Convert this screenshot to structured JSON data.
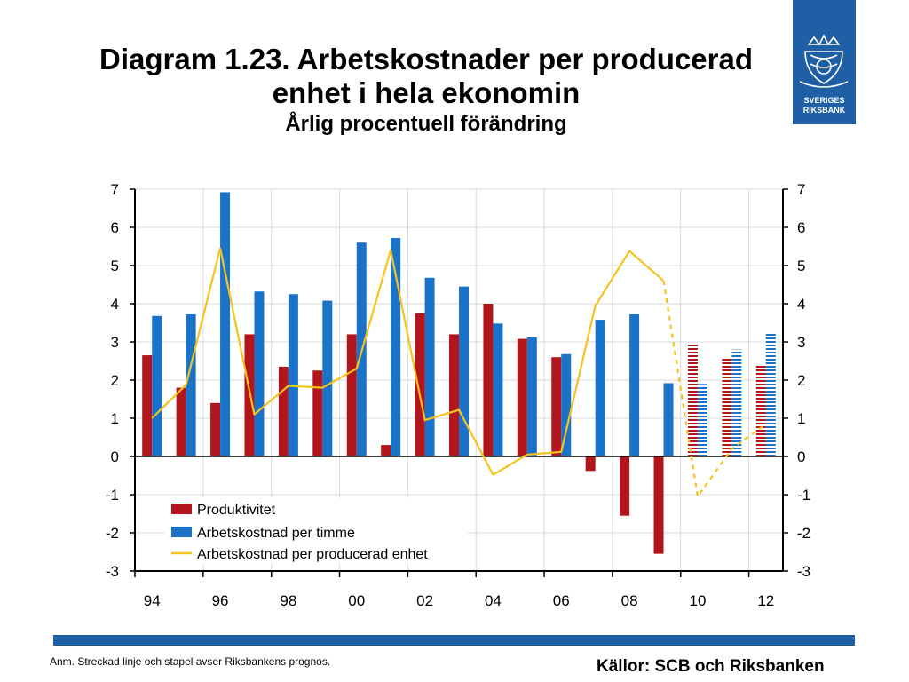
{
  "header": {
    "title_line1": "Diagram 1.23. Arbetskostnader per producerad",
    "title_line2": "enhet i hela ekonomin",
    "subtitle": "Årlig procentuell förändring"
  },
  "logo": {
    "line1": "SVERIGES",
    "line2": "RIKSBANK"
  },
  "footer": {
    "note": "Anm. Streckad linje och stapel avser Riksbankens prognos.",
    "source": "Källor: SCB och Riksbanken"
  },
  "colors": {
    "red": "#b3151c",
    "blue": "#1a73c9",
    "yellow": "#f6c31c",
    "band": "#1f5fa6"
  },
  "chart_data": {
    "type": "bar",
    "title": "Diagram 1.23. Arbetskostnader per producerad enhet i hela ekonomin",
    "subtitle": "Årlig procentuell förändring",
    "categories": [
      "1994",
      "1995",
      "1996",
      "1997",
      "1998",
      "1999",
      "2000",
      "2001",
      "2002",
      "2003",
      "2004",
      "2005",
      "2006",
      "2007",
      "2008",
      "2009",
      "2010",
      "2011",
      "2012"
    ],
    "x_tick_labels": [
      "94",
      "96",
      "98",
      "00",
      "02",
      "04",
      "06",
      "08",
      "10",
      "12"
    ],
    "ylim": [
      -3,
      7
    ],
    "y_ticks": [
      7,
      6,
      5,
      4,
      3,
      2,
      1,
      0,
      -1,
      -2,
      -3
    ],
    "forecast_from": "2010",
    "series": [
      {
        "name": "Produktivitet",
        "kind": "bar",
        "color": "#b3151c",
        "values": [
          2.65,
          1.8,
          1.4,
          3.2,
          2.35,
          2.25,
          3.2,
          0.3,
          3.75,
          3.2,
          4.0,
          3.08,
          2.6,
          -0.38,
          -1.55,
          -2.55,
          2.95,
          2.6,
          2.4
        ]
      },
      {
        "name": "Arbetskostnad per timme",
        "kind": "bar",
        "color": "#1a73c9",
        "values": [
          3.68,
          3.72,
          6.92,
          4.32,
          4.25,
          4.08,
          5.6,
          5.72,
          4.68,
          4.45,
          3.48,
          3.12,
          2.68,
          3.58,
          3.72,
          1.92,
          1.9,
          2.8,
          3.25
        ]
      },
      {
        "name": "Arbetskostnad per producerad enhet",
        "kind": "line",
        "color": "#f6c31c",
        "values": [
          1.0,
          1.88,
          5.45,
          1.1,
          1.85,
          1.8,
          2.3,
          5.4,
          0.95,
          1.22,
          -0.48,
          0.05,
          0.12,
          3.95,
          5.38,
          4.6,
          -1.05,
          0.2,
          0.85
        ]
      }
    ],
    "legend_position": "bottom-left inside plot",
    "grid": true,
    "annotations": "Striped bars and dashed line denote forecast"
  }
}
